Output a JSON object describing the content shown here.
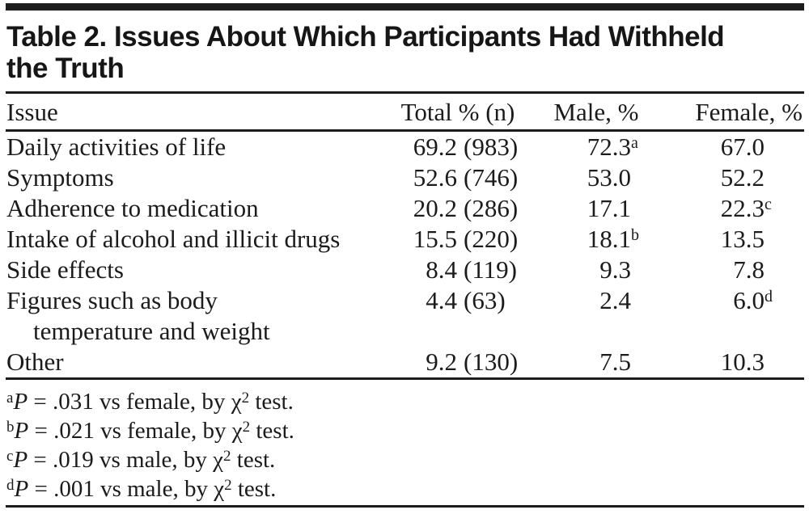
{
  "page": {
    "title": "Table 2. Issues About Which Participants Had Withheld\nthe Truth"
  },
  "table": {
    "columns": {
      "issue": "Issue",
      "total": "Total % (n)",
      "male": "Male, %",
      "female": "Female, %"
    },
    "rows": [
      {
        "issue": "Daily activities of life",
        "issue_line2": "",
        "total_pct": "69.2",
        "total_n": "(983)",
        "male_pct": "72.3",
        "male_sup": "a",
        "female_pct": "67.0",
        "female_sup": ""
      },
      {
        "issue": "Symptoms",
        "issue_line2": "",
        "total_pct": "52.6",
        "total_n": "(746)",
        "male_pct": "53.0",
        "male_sup": "",
        "female_pct": "52.2",
        "female_sup": ""
      },
      {
        "issue": "Adherence to medication",
        "issue_line2": "",
        "total_pct": "20.2",
        "total_n": "(286)",
        "male_pct": "17.1",
        "male_sup": "",
        "female_pct": "22.3",
        "female_sup": "c"
      },
      {
        "issue": "Intake of alcohol and illicit drugs",
        "issue_line2": "",
        "total_pct": "15.5",
        "total_n": "(220)",
        "male_pct": "18.1",
        "male_sup": "b",
        "female_pct": "13.5",
        "female_sup": ""
      },
      {
        "issue": "Side effects",
        "issue_line2": "",
        "total_pct": "8.4",
        "total_n": "(119)",
        "male_pct": "9.3",
        "male_sup": "",
        "female_pct": "7.8",
        "female_sup": ""
      },
      {
        "issue": "Figures such as body",
        "issue_line2": "temperature and weight",
        "total_pct": "4.4",
        "total_n": "(63)",
        "male_pct": "2.4",
        "male_sup": "",
        "female_pct": "6.0",
        "female_sup": "d"
      },
      {
        "issue": "Other",
        "issue_line2": "",
        "total_pct": "9.2",
        "total_n": "(130)",
        "male_pct": "7.5",
        "male_sup": "",
        "female_pct": "10.3",
        "female_sup": ""
      }
    ],
    "footnotes": [
      {
        "marker": "a",
        "p": "P",
        "body": " = .031 vs female, by ",
        "chi": "χ",
        "chi_exp": "2",
        "tail": " test."
      },
      {
        "marker": "b",
        "p": "P",
        "body": " = .021 vs female, by ",
        "chi": "χ",
        "chi_exp": "2",
        "tail": " test."
      },
      {
        "marker": "c",
        "p": "P",
        "body": " = .019 vs male, by ",
        "chi": "χ",
        "chi_exp": "2",
        "tail": " test."
      },
      {
        "marker": "d",
        "p": "P",
        "body": " = .001 vs male, by ",
        "chi": "χ",
        "chi_exp": "2",
        "tail": " test."
      }
    ]
  },
  "colors": {
    "ink": "#1b1b1b",
    "rule": "#1c1c1c",
    "background": "#ffffff"
  }
}
